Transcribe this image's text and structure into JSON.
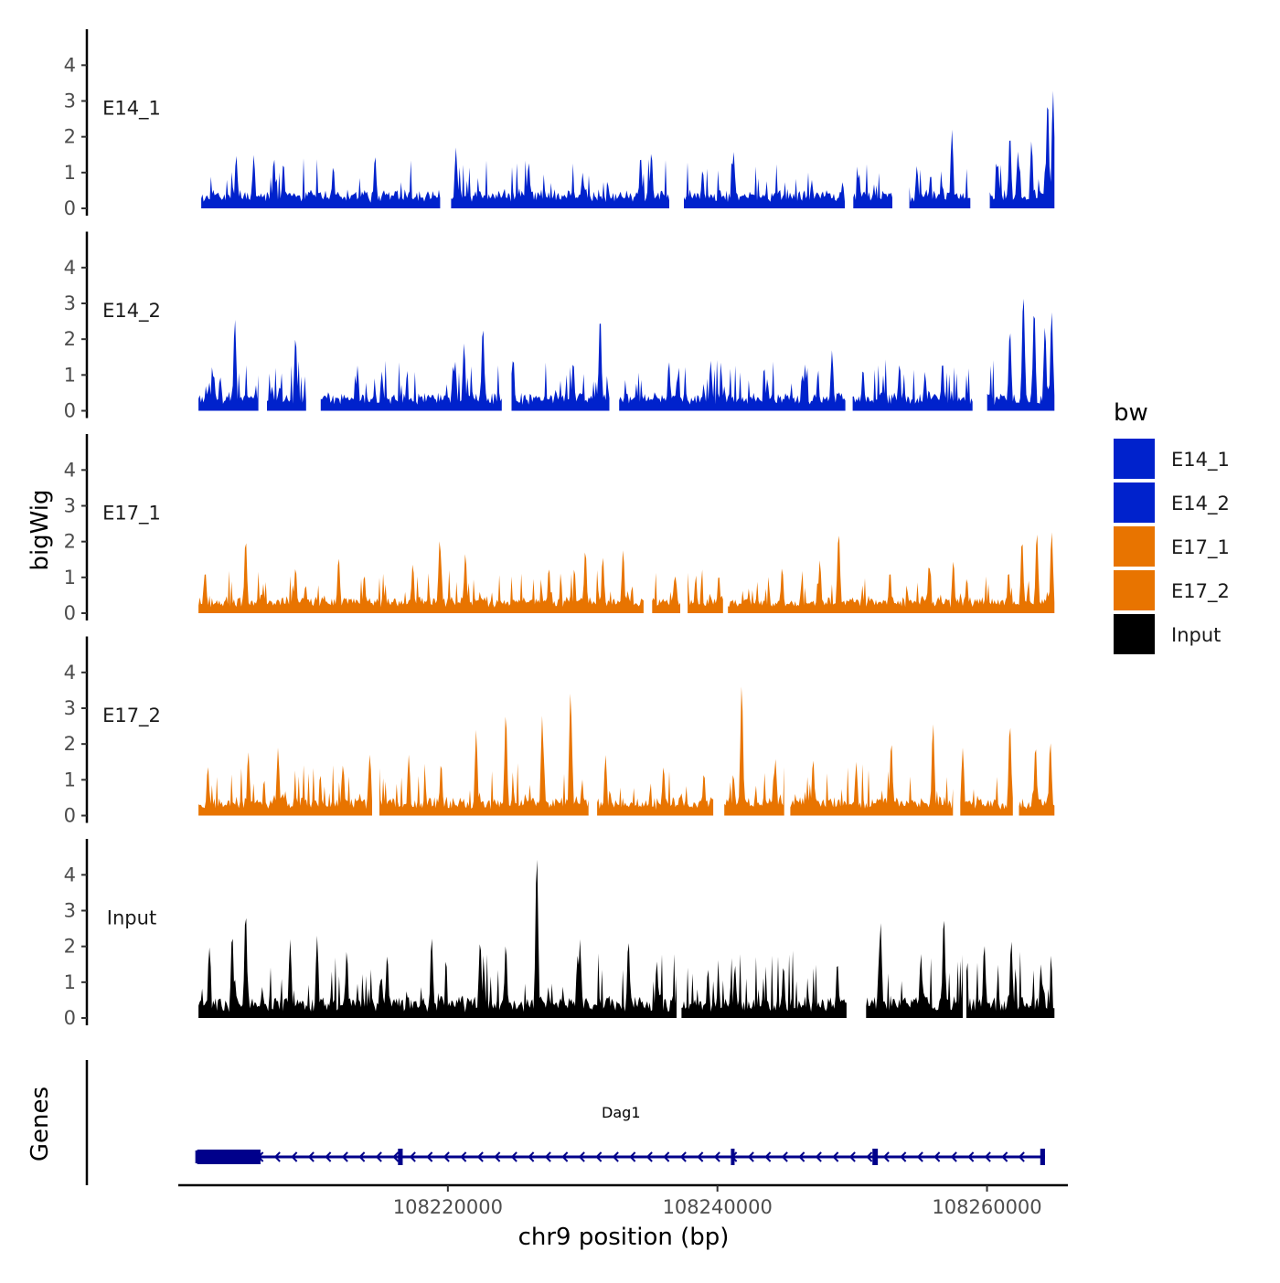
{
  "chart_data": {
    "type": "area",
    "y_axis_title": "bigWig",
    "x_axis_title": "chr9 position (bp)",
    "genes_axis_title": "Genes",
    "x_range": [
      108200000,
      108266000
    ],
    "x_ticks": [
      108220000,
      108240000,
      108260000
    ],
    "x_tick_labels": [
      "108220000",
      "108240000",
      "108260000"
    ],
    "y_range": [
      0,
      4.8
    ],
    "y_ticks": [
      0,
      1,
      2,
      3,
      4
    ],
    "y_tick_labels": [
      "0",
      "1",
      "2",
      "3",
      "4"
    ],
    "legend": {
      "title": "bw",
      "position": "right",
      "entries": [
        {
          "name": "E14_1",
          "color": "#0022cc"
        },
        {
          "name": "E14_2",
          "color": "#0022cc"
        },
        {
          "name": "E17_1",
          "color": "#e87400"
        },
        {
          "name": "E17_2",
          "color": "#e87400"
        },
        {
          "name": "Input",
          "color": "#000000"
        }
      ]
    },
    "series": [
      {
        "name": "E14_1",
        "color": "#0022cc",
        "start": 108201700,
        "end": 108265000,
        "gaps": [
          [
            108219500,
            108220200
          ],
          [
            108236500,
            108237500
          ],
          [
            108249500,
            108250000
          ],
          [
            108253000,
            108254200
          ],
          [
            108258800,
            108260200
          ]
        ],
        "peaks": [
          [
            108204300,
            1.5
          ],
          [
            108205600,
            1.5
          ],
          [
            108207800,
            1.3
          ],
          [
            108211500,
            1.2
          ],
          [
            108214600,
            1.5
          ],
          [
            108220600,
            1.7
          ],
          [
            108226000,
            1.3
          ],
          [
            108230000,
            1.0
          ],
          [
            108234300,
            1.5
          ],
          [
            108235100,
            1.6
          ],
          [
            108238900,
            1.1
          ],
          [
            108241200,
            1.6
          ],
          [
            108247000,
            0.8
          ],
          [
            108250500,
            1.0
          ],
          [
            108254800,
            1.2
          ],
          [
            108255800,
            0.9
          ],
          [
            108257400,
            2.2
          ],
          [
            108260800,
            1.3
          ],
          [
            108261700,
            2.1
          ],
          [
            108262300,
            1.6
          ],
          [
            108263300,
            1.9
          ],
          [
            108264500,
            3.1
          ],
          [
            108264900,
            3.3
          ]
        ],
        "noise_seed": 11,
        "noise_amp": 0.55
      },
      {
        "name": "E14_2",
        "color": "#0022cc",
        "start": 108201500,
        "end": 108265000,
        "gaps": [
          [
            108206000,
            108206500
          ],
          [
            108209500,
            108210500
          ],
          [
            108224000,
            108224700
          ],
          [
            108232000,
            108232700
          ],
          [
            108249500,
            108250000
          ],
          [
            108259000,
            108260000
          ]
        ],
        "peaks": [
          [
            108202300,
            0.8
          ],
          [
            108204200,
            2.6
          ],
          [
            108206300,
            0.8
          ],
          [
            108208700,
            2.1
          ],
          [
            108210200,
            0.7
          ],
          [
            108213300,
            1.2
          ],
          [
            108215100,
            1.1
          ],
          [
            108220400,
            1.3
          ],
          [
            108221200,
            1.9
          ],
          [
            108222600,
            2.4
          ],
          [
            108224800,
            1.4
          ],
          [
            108229300,
            1.4
          ],
          [
            108231300,
            2.7
          ],
          [
            108236400,
            1.4
          ],
          [
            108239500,
            1.4
          ],
          [
            108240300,
            0.7
          ],
          [
            108243700,
            0.9
          ],
          [
            108246500,
            1.3
          ],
          [
            108248500,
            1.7
          ],
          [
            108250800,
            1.2
          ],
          [
            108253500,
            1.3
          ],
          [
            108255400,
            1.1
          ],
          [
            108256700,
            1.4
          ],
          [
            108261700,
            2.3
          ],
          [
            108262700,
            3.3
          ],
          [
            108263500,
            2.9
          ],
          [
            108264300,
            2.4
          ],
          [
            108264800,
            2.8
          ]
        ],
        "noise_seed": 23,
        "noise_amp": 0.55
      },
      {
        "name": "E17_1",
        "color": "#e87400",
        "start": 108201500,
        "end": 108265000,
        "gaps": [
          [
            108234600,
            108235100
          ],
          [
            108237300,
            108237700
          ],
          [
            108240500,
            108240700
          ]
        ],
        "peaks": [
          [
            108202000,
            1.2
          ],
          [
            108205000,
            2.1
          ],
          [
            108208700,
            1.3
          ],
          [
            108211900,
            1.6
          ],
          [
            108213800,
            1.1
          ],
          [
            108217400,
            1.4
          ],
          [
            108219400,
            2.1
          ],
          [
            108221300,
            1.7
          ],
          [
            108227500,
            1.3
          ],
          [
            108230200,
            1.8
          ],
          [
            108231500,
            1.6
          ],
          [
            108233000,
            1.8
          ],
          [
            108236800,
            0.9
          ],
          [
            108240100,
            1.1
          ],
          [
            108244800,
            1.3
          ],
          [
            108247600,
            1.5
          ],
          [
            108249000,
            2.3
          ],
          [
            108252800,
            1.2
          ],
          [
            108255700,
            1.4
          ],
          [
            108257500,
            1.5
          ],
          [
            108258500,
            1.0
          ],
          [
            108261600,
            1.2
          ],
          [
            108262600,
            2.1
          ],
          [
            108263700,
            2.3
          ],
          [
            108264800,
            2.3
          ]
        ],
        "noise_seed": 37,
        "noise_amp": 0.45
      },
      {
        "name": "E17_2",
        "color": "#e87400",
        "start": 108201500,
        "end": 108265000,
        "gaps": [
          [
            108214400,
            108214900
          ],
          [
            108230500,
            108231000
          ],
          [
            108239700,
            108240500
          ],
          [
            108245000,
            108245400
          ],
          [
            108257500,
            108258000
          ],
          [
            108262000,
            108262300
          ]
        ],
        "peaks": [
          [
            108202200,
            1.4
          ],
          [
            108205200,
            1.8
          ],
          [
            108207400,
            1.9
          ],
          [
            108212200,
            1.4
          ],
          [
            108214200,
            1.7
          ],
          [
            108217100,
            1.7
          ],
          [
            108219500,
            1.5
          ],
          [
            108222100,
            2.4
          ],
          [
            108224300,
            2.9
          ],
          [
            108227000,
            2.8
          ],
          [
            108229100,
            3.5
          ],
          [
            108231700,
            1.7
          ],
          [
            108236000,
            1.4
          ],
          [
            108239000,
            1.2
          ],
          [
            108240200,
            1.6
          ],
          [
            108241800,
            3.7
          ],
          [
            108244300,
            1.6
          ],
          [
            108247100,
            1.6
          ],
          [
            108250300,
            1.5
          ],
          [
            108252900,
            2.1
          ],
          [
            108256000,
            2.6
          ],
          [
            108258200,
            1.9
          ],
          [
            108261700,
            2.6
          ],
          [
            108263600,
            2.0
          ],
          [
            108264700,
            2.1
          ]
        ],
        "noise_seed": 53,
        "noise_amp": 0.55
      },
      {
        "name": "Input",
        "color": "#000000",
        "start": 108201500,
        "end": 108265000,
        "gaps": [
          [
            108237000,
            108237300
          ],
          [
            108249600,
            108251000
          ],
          [
            108258200,
            108258400
          ]
        ],
        "peaks": [
          [
            108202300,
            2.0
          ],
          [
            108204000,
            2.4
          ],
          [
            108205000,
            3.0
          ],
          [
            108208300,
            2.2
          ],
          [
            108210300,
            2.3
          ],
          [
            108212500,
            1.9
          ],
          [
            108215500,
            1.8
          ],
          [
            108218800,
            2.3
          ],
          [
            108222400,
            2.2
          ],
          [
            108224300,
            2.1
          ],
          [
            108226600,
            4.6
          ],
          [
            108229800,
            2.2
          ],
          [
            108233400,
            2.2
          ],
          [
            108235500,
            1.6
          ],
          [
            108239300,
            1.4
          ],
          [
            108241300,
            1.5
          ],
          [
            108244900,
            1.5
          ],
          [
            108248900,
            1.6
          ],
          [
            108252100,
            2.7
          ],
          [
            108255100,
            1.8
          ],
          [
            108256800,
            2.9
          ],
          [
            108259800,
            2.1
          ],
          [
            108261800,
            2.2
          ],
          [
            108264000,
            1.5
          ]
        ],
        "noise_seed": 71,
        "noise_amp": 0.75
      }
    ],
    "gene_track": {
      "gene_name": "Dag1",
      "strand": "-",
      "color": "#00008b",
      "start": 108201400,
      "end": 108264300,
      "exons": [
        [
          108201400,
          108206100
        ],
        [
          108216300,
          108216650
        ],
        [
          108241000,
          108241150
        ],
        [
          108251500,
          108251900
        ],
        [
          108263950,
          108264300
        ]
      ]
    }
  }
}
